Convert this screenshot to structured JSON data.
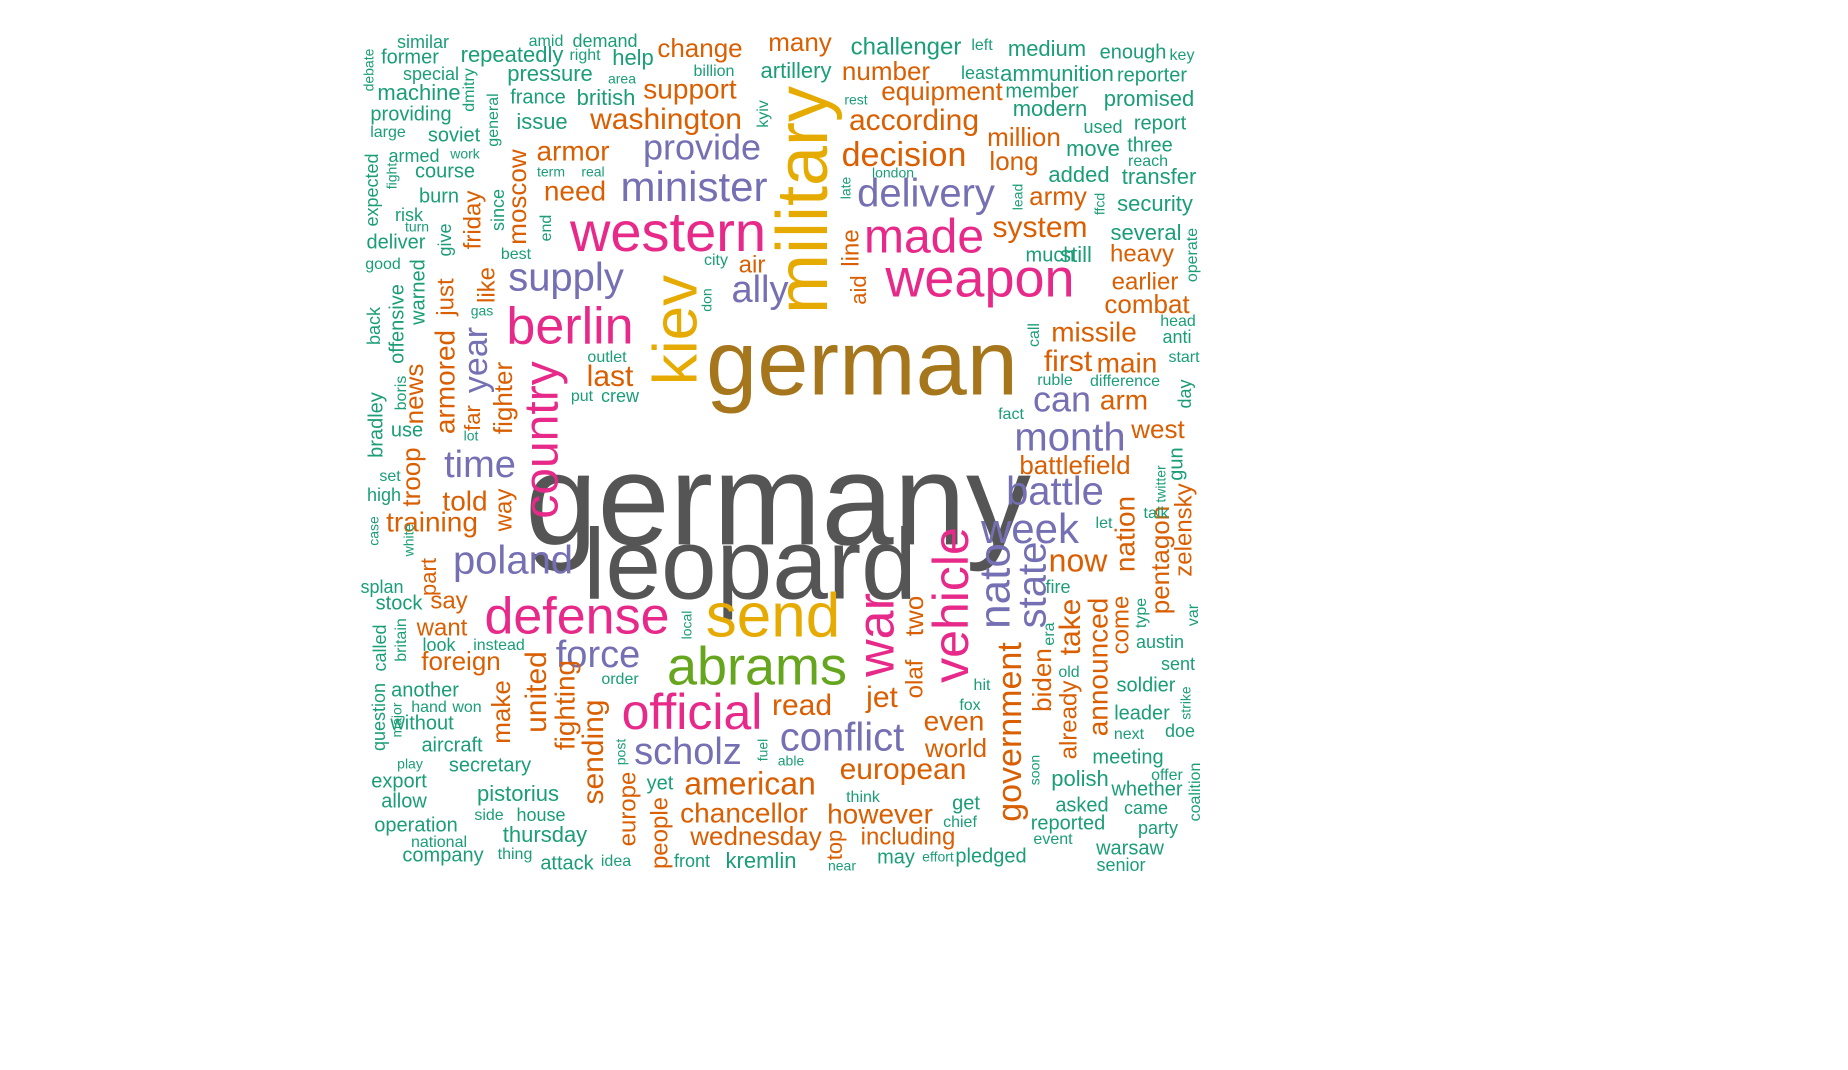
{
  "palette": {
    "c1": "#1b9e77",
    "c2": "#d95f02",
    "c3": "#7570b3",
    "c4": "#e7298a",
    "c5": "#66a61e",
    "c6": "#e6ab02",
    "c7": "#a6761d",
    "c8": "#555555"
  },
  "words": [
    {
      "text": "germany",
      "color": "c8"
    },
    {
      "text": "leopard",
      "color": "c8"
    },
    {
      "text": "german",
      "color": "c7"
    },
    {
      "text": "military",
      "color": "c6"
    },
    {
      "text": "send",
      "color": "c6"
    },
    {
      "text": "kiev",
      "color": "c6"
    },
    {
      "text": "abrams",
      "color": "c5"
    },
    {
      "text": "western",
      "color": "c4"
    },
    {
      "text": "weapon",
      "color": "c4"
    },
    {
      "text": "made",
      "color": "c4"
    },
    {
      "text": "berlin",
      "color": "c4"
    },
    {
      "text": "defense",
      "color": "c4"
    },
    {
      "text": "official",
      "color": "c4"
    },
    {
      "text": "vehicle",
      "color": "c4"
    },
    {
      "text": "war",
      "color": "c4"
    },
    {
      "text": "country",
      "color": "c4"
    },
    {
      "text": "minister",
      "color": "c3"
    },
    {
      "text": "delivery",
      "color": "c3"
    },
    {
      "text": "provide",
      "color": "c3"
    },
    {
      "text": "supply",
      "color": "c3"
    },
    {
      "text": "ally",
      "color": "c3"
    },
    {
      "text": "month",
      "color": "c3"
    },
    {
      "text": "battle",
      "color": "c3"
    },
    {
      "text": "week",
      "color": "c3"
    },
    {
      "text": "nato",
      "color": "c3"
    },
    {
      "text": "state",
      "color": "c3"
    },
    {
      "text": "time",
      "color": "c3"
    },
    {
      "text": "poland",
      "color": "c3"
    },
    {
      "text": "force",
      "color": "c3"
    },
    {
      "text": "scholz",
      "color": "c3"
    },
    {
      "text": "conflict",
      "color": "c3"
    },
    {
      "text": "can",
      "color": "c3"
    },
    {
      "text": "year",
      "color": "c3"
    },
    {
      "text": "government",
      "color": "c2"
    },
    {
      "text": "decision",
      "color": "c2"
    },
    {
      "text": "washington",
      "color": "c2"
    },
    {
      "text": "according",
      "color": "c2"
    },
    {
      "text": "support",
      "color": "c2"
    },
    {
      "text": "armor",
      "color": "c2"
    },
    {
      "text": "need",
      "color": "c2"
    },
    {
      "text": "last",
      "color": "c2"
    },
    {
      "text": "system",
      "color": "c2"
    },
    {
      "text": "missile",
      "color": "c2"
    },
    {
      "text": "first",
      "color": "c2"
    },
    {
      "text": "main",
      "color": "c2"
    },
    {
      "text": "arm",
      "color": "c2"
    },
    {
      "text": "west",
      "color": "c2"
    },
    {
      "text": "battlefield",
      "color": "c2"
    },
    {
      "text": "now",
      "color": "c2"
    },
    {
      "text": "nation",
      "color": "c2"
    },
    {
      "text": "take",
      "color": "c2"
    },
    {
      "text": "announced",
      "color": "c2"
    },
    {
      "text": "pentagon",
      "color": "c2"
    },
    {
      "text": "zelensky",
      "color": "c2"
    },
    {
      "text": "european",
      "color": "c2"
    },
    {
      "text": "american",
      "color": "c2"
    },
    {
      "text": "chancellor",
      "color": "c2"
    },
    {
      "text": "wednesday",
      "color": "c2"
    },
    {
      "text": "however",
      "color": "c2"
    },
    {
      "text": "including",
      "color": "c2"
    },
    {
      "text": "even",
      "color": "c2"
    },
    {
      "text": "world",
      "color": "c2"
    },
    {
      "text": "jet",
      "color": "c2"
    },
    {
      "text": "read",
      "color": "c2"
    },
    {
      "text": "two",
      "color": "c2"
    },
    {
      "text": "olaf",
      "color": "c2"
    },
    {
      "text": "biden",
      "color": "c2"
    },
    {
      "text": "already",
      "color": "c2"
    },
    {
      "text": "come",
      "color": "c2"
    },
    {
      "text": "told",
      "color": "c2"
    },
    {
      "text": "training",
      "color": "c2"
    },
    {
      "text": "armored",
      "color": "c2"
    },
    {
      "text": "news",
      "color": "c2"
    },
    {
      "text": "troop",
      "color": "c2"
    },
    {
      "text": "fighter",
      "color": "c2"
    },
    {
      "text": "way",
      "color": "c2"
    },
    {
      "text": "say",
      "color": "c2"
    },
    {
      "text": "want",
      "color": "c2"
    },
    {
      "text": "part",
      "color": "c2"
    },
    {
      "text": "foreign",
      "color": "c2"
    },
    {
      "text": "make",
      "color": "c2"
    },
    {
      "text": "united",
      "color": "c2"
    },
    {
      "text": "fighting",
      "color": "c2"
    },
    {
      "text": "sending",
      "color": "c2"
    },
    {
      "text": "europe",
      "color": "c2"
    },
    {
      "text": "people",
      "color": "c2"
    },
    {
      "text": "top",
      "color": "c2"
    },
    {
      "text": "friday",
      "color": "c2"
    },
    {
      "text": "moscow",
      "color": "c2"
    },
    {
      "text": "like",
      "color": "c2"
    },
    {
      "text": "just",
      "color": "c2"
    },
    {
      "text": "air",
      "color": "c2"
    },
    {
      "text": "line",
      "color": "c2"
    },
    {
      "text": "aid",
      "color": "c2"
    },
    {
      "text": "change",
      "color": "c2"
    },
    {
      "text": "many",
      "color": "c2"
    },
    {
      "text": "number",
      "color": "c2"
    },
    {
      "text": "equipment",
      "color": "c2"
    },
    {
      "text": "million",
      "color": "c2"
    },
    {
      "text": "long",
      "color": "c2"
    },
    {
      "text": "army",
      "color": "c2"
    },
    {
      "text": "heavy",
      "color": "c2"
    },
    {
      "text": "earlier",
      "color": "c2"
    },
    {
      "text": "combat",
      "color": "c2"
    },
    {
      "text": "far",
      "color": "c2"
    },
    {
      "text": "challenger",
      "color": "c1"
    },
    {
      "text": "medium",
      "color": "c1"
    },
    {
      "text": "enough",
      "color": "c1"
    },
    {
      "text": "key",
      "color": "c1"
    },
    {
      "text": "left",
      "color": "c1"
    },
    {
      "text": "artillery",
      "color": "c1"
    },
    {
      "text": "least",
      "color": "c1"
    },
    {
      "text": "ammunition",
      "color": "c1"
    },
    {
      "text": "reporter",
      "color": "c1"
    },
    {
      "text": "member",
      "color": "c1"
    },
    {
      "text": "promised",
      "color": "c1"
    },
    {
      "text": "modern",
      "color": "c1"
    },
    {
      "text": "used",
      "color": "c1"
    },
    {
      "text": "report",
      "color": "c1"
    },
    {
      "text": "move",
      "color": "c1"
    },
    {
      "text": "three",
      "color": "c1"
    },
    {
      "text": "reach",
      "color": "c1"
    },
    {
      "text": "added",
      "color": "c1"
    },
    {
      "text": "transfer",
      "color": "c1"
    },
    {
      "text": "security",
      "color": "c1"
    },
    {
      "text": "several",
      "color": "c1"
    },
    {
      "text": "much",
      "color": "c1"
    },
    {
      "text": "still",
      "color": "c1"
    },
    {
      "text": "operate",
      "color": "c1"
    },
    {
      "text": "head",
      "color": "c1"
    },
    {
      "text": "anti",
      "color": "c1"
    },
    {
      "text": "start",
      "color": "c1"
    },
    {
      "text": "difference",
      "color": "c1"
    },
    {
      "text": "day",
      "color": "c1"
    },
    {
      "text": "ruble",
      "color": "c1"
    },
    {
      "text": "call",
      "color": "c1"
    },
    {
      "text": "fact",
      "color": "c1"
    },
    {
      "text": "twitter",
      "color": "c1"
    },
    {
      "text": "gun",
      "color": "c1"
    },
    {
      "text": "talk",
      "color": "c1"
    },
    {
      "text": "let",
      "color": "c1"
    },
    {
      "text": "fire",
      "color": "c1"
    },
    {
      "text": "era",
      "color": "c1"
    },
    {
      "text": "type",
      "color": "c1"
    },
    {
      "text": "austin",
      "color": "c1"
    },
    {
      "text": "var",
      "color": "c1"
    },
    {
      "text": "sent",
      "color": "c1"
    },
    {
      "text": "old",
      "color": "c1"
    },
    {
      "text": "soldier",
      "color": "c1"
    },
    {
      "text": "strike",
      "color": "c1"
    },
    {
      "text": "leader",
      "color": "c1"
    },
    {
      "text": "next",
      "color": "c1"
    },
    {
      "text": "doe",
      "color": "c1"
    },
    {
      "text": "meeting",
      "color": "c1"
    },
    {
      "text": "soon",
      "color": "c1"
    },
    {
      "text": "offer",
      "color": "c1"
    },
    {
      "text": "coalition",
      "color": "c1"
    },
    {
      "text": "polish",
      "color": "c1"
    },
    {
      "text": "whether",
      "color": "c1"
    },
    {
      "text": "asked",
      "color": "c1"
    },
    {
      "text": "came",
      "color": "c1"
    },
    {
      "text": "reported",
      "color": "c1"
    },
    {
      "text": "party",
      "color": "c1"
    },
    {
      "text": "event",
      "color": "c1"
    },
    {
      "text": "warsaw",
      "color": "c1"
    },
    {
      "text": "senior",
      "color": "c1"
    },
    {
      "text": "similar",
      "color": "c1"
    },
    {
      "text": "amid",
      "color": "c1"
    },
    {
      "text": "demand",
      "color": "c1"
    },
    {
      "text": "debate",
      "color": "c1"
    },
    {
      "text": "former",
      "color": "c1"
    },
    {
      "text": "repeatedly",
      "color": "c1"
    },
    {
      "text": "right",
      "color": "c1"
    },
    {
      "text": "help",
      "color": "c1"
    },
    {
      "text": "billion",
      "color": "c1"
    },
    {
      "text": "special",
      "color": "c1"
    },
    {
      "text": "pressure",
      "color": "c1"
    },
    {
      "text": "area",
      "color": "c1"
    },
    {
      "text": "machine",
      "color": "c1"
    },
    {
      "text": "dmitry",
      "color": "c1"
    },
    {
      "text": "france",
      "color": "c1"
    },
    {
      "text": "british",
      "color": "c1"
    },
    {
      "text": "rest",
      "color": "c1"
    },
    {
      "text": "providing",
      "color": "c1"
    },
    {
      "text": "general",
      "color": "c1"
    },
    {
      "text": "issue",
      "color": "c1"
    },
    {
      "text": "kyiv",
      "color": "c1"
    },
    {
      "text": "large",
      "color": "c1"
    },
    {
      "text": "soviet",
      "color": "c1"
    },
    {
      "text": "armed",
      "color": "c1"
    },
    {
      "text": "work",
      "color": "c1"
    },
    {
      "text": "course",
      "color": "c1"
    },
    {
      "text": "term",
      "color": "c1"
    },
    {
      "text": "real",
      "color": "c1"
    },
    {
      "text": "london",
      "color": "c1"
    },
    {
      "text": "expected",
      "color": "c1"
    },
    {
      "text": "fight",
      "color": "c1"
    },
    {
      "text": "burn",
      "color": "c1"
    },
    {
      "text": "late",
      "color": "c1"
    },
    {
      "text": "risk",
      "color": "c1"
    },
    {
      "text": "since",
      "color": "c1"
    },
    {
      "text": "turn",
      "color": "c1"
    },
    {
      "text": "end",
      "color": "c1"
    },
    {
      "text": "lead",
      "color": "c1"
    },
    {
      "text": "ffcd",
      "color": "c1"
    },
    {
      "text": "give",
      "color": "c1"
    },
    {
      "text": "deliver",
      "color": "c1"
    },
    {
      "text": "best",
      "color": "c1"
    },
    {
      "text": "city",
      "color": "c1"
    },
    {
      "text": "good",
      "color": "c1"
    },
    {
      "text": "warned",
      "color": "c1"
    },
    {
      "text": "offensive",
      "color": "c1"
    },
    {
      "text": "gas",
      "color": "c1"
    },
    {
      "text": "don",
      "color": "c1"
    },
    {
      "text": "back",
      "color": "c1"
    },
    {
      "text": "outlet",
      "color": "c1"
    },
    {
      "text": "boris",
      "color": "c1"
    },
    {
      "text": "put",
      "color": "c1"
    },
    {
      "text": "crew",
      "color": "c1"
    },
    {
      "text": "lot",
      "color": "c1"
    },
    {
      "text": "bradley",
      "color": "c1"
    },
    {
      "text": "use",
      "color": "c1"
    },
    {
      "text": "set",
      "color": "c1"
    },
    {
      "text": "high",
      "color": "c1"
    },
    {
      "text": "case",
      "color": "c1"
    },
    {
      "text": "white",
      "color": "c1"
    },
    {
      "text": "splan",
      "color": "c1"
    },
    {
      "text": "stock",
      "color": "c1"
    },
    {
      "text": "britain",
      "color": "c1"
    },
    {
      "text": "called",
      "color": "c1"
    },
    {
      "text": "look",
      "color": "c1"
    },
    {
      "text": "instead",
      "color": "c1"
    },
    {
      "text": "local",
      "color": "c1"
    },
    {
      "text": "another",
      "color": "c1"
    },
    {
      "text": "order",
      "color": "c1"
    },
    {
      "text": "question",
      "color": "c1"
    },
    {
      "text": "major",
      "color": "c1"
    },
    {
      "text": "hand",
      "color": "c1"
    },
    {
      "text": "won",
      "color": "c1"
    },
    {
      "text": "without",
      "color": "c1"
    },
    {
      "text": "aircraft",
      "color": "c1"
    },
    {
      "text": "play",
      "color": "c1"
    },
    {
      "text": "post",
      "color": "c1"
    },
    {
      "text": "fuel",
      "color": "c1"
    },
    {
      "text": "able",
      "color": "c1"
    },
    {
      "text": "hit",
      "color": "c1"
    },
    {
      "text": "fox",
      "color": "c1"
    },
    {
      "text": "secretary",
      "color": "c1"
    },
    {
      "text": "export",
      "color": "c1"
    },
    {
      "text": "yet",
      "color": "c1"
    },
    {
      "text": "allow",
      "color": "c1"
    },
    {
      "text": "pistorius",
      "color": "c1"
    },
    {
      "text": "side",
      "color": "c1"
    },
    {
      "text": "house",
      "color": "c1"
    },
    {
      "text": "think",
      "color": "c1"
    },
    {
      "text": "get",
      "color": "c1"
    },
    {
      "text": "chief",
      "color": "c1"
    },
    {
      "text": "operation",
      "color": "c1"
    },
    {
      "text": "thursday",
      "color": "c1"
    },
    {
      "text": "national",
      "color": "c1"
    },
    {
      "text": "company",
      "color": "c1"
    },
    {
      "text": "thing",
      "color": "c1"
    },
    {
      "text": "attack",
      "color": "c1"
    },
    {
      "text": "idea",
      "color": "c1"
    },
    {
      "text": "front",
      "color": "c1"
    },
    {
      "text": "kremlin",
      "color": "c1"
    },
    {
      "text": "near",
      "color": "c1"
    },
    {
      "text": "may",
      "color": "c1"
    },
    {
      "text": "effort",
      "color": "c1"
    },
    {
      "text": "pledged",
      "color": "c1"
    }
  ]
}
